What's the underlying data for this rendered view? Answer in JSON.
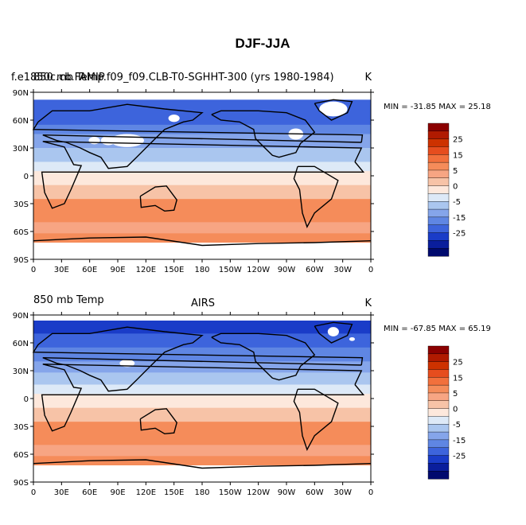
{
  "figure": {
    "title": "DJF-JJA"
  },
  "panels": [
    {
      "left_label": "f.e1850c.cb.FAMIP.f09_f09.CLB-T0-SGHHT-300 (yrs 1980-1984)",
      "left_label_overlay": "850 mb Temp",
      "center_label": "",
      "right_label": "K",
      "min_max": "MIN = -31.85 MAX =  25.18"
    },
    {
      "left_label": "850 mb Temp",
      "left_label_overlay": "",
      "center_label": "AIRS",
      "right_label": "K",
      "min_max": "MIN = -67.85 MAX =  65.19"
    }
  ],
  "colorbar": {
    "labels": [
      "25",
      "15",
      "5",
      "0",
      "-5",
      "-15",
      "-25"
    ],
    "colors": [
      "#8b0000",
      "#b01a00",
      "#cd3200",
      "#e64d1e",
      "#f2703c",
      "#f58c5a",
      "#f7a583",
      "#f7c3a7",
      "#fde8dc",
      "#dde9f7",
      "#aac6ef",
      "#85a5ea",
      "#5f86e3",
      "#3d64dc",
      "#1a3cc8",
      "#0a1e9c",
      "#000a6e"
    ]
  },
  "axes": {
    "lat_ticks": [
      "90N",
      "60N",
      "30N",
      "0",
      "30S",
      "60S",
      "90S"
    ],
    "lon_ticks": [
      "0",
      "30E",
      "60E",
      "90E",
      "120E",
      "150E",
      "180",
      "150W",
      "120W",
      "90W",
      "60W",
      "30W",
      "0"
    ]
  }
}
